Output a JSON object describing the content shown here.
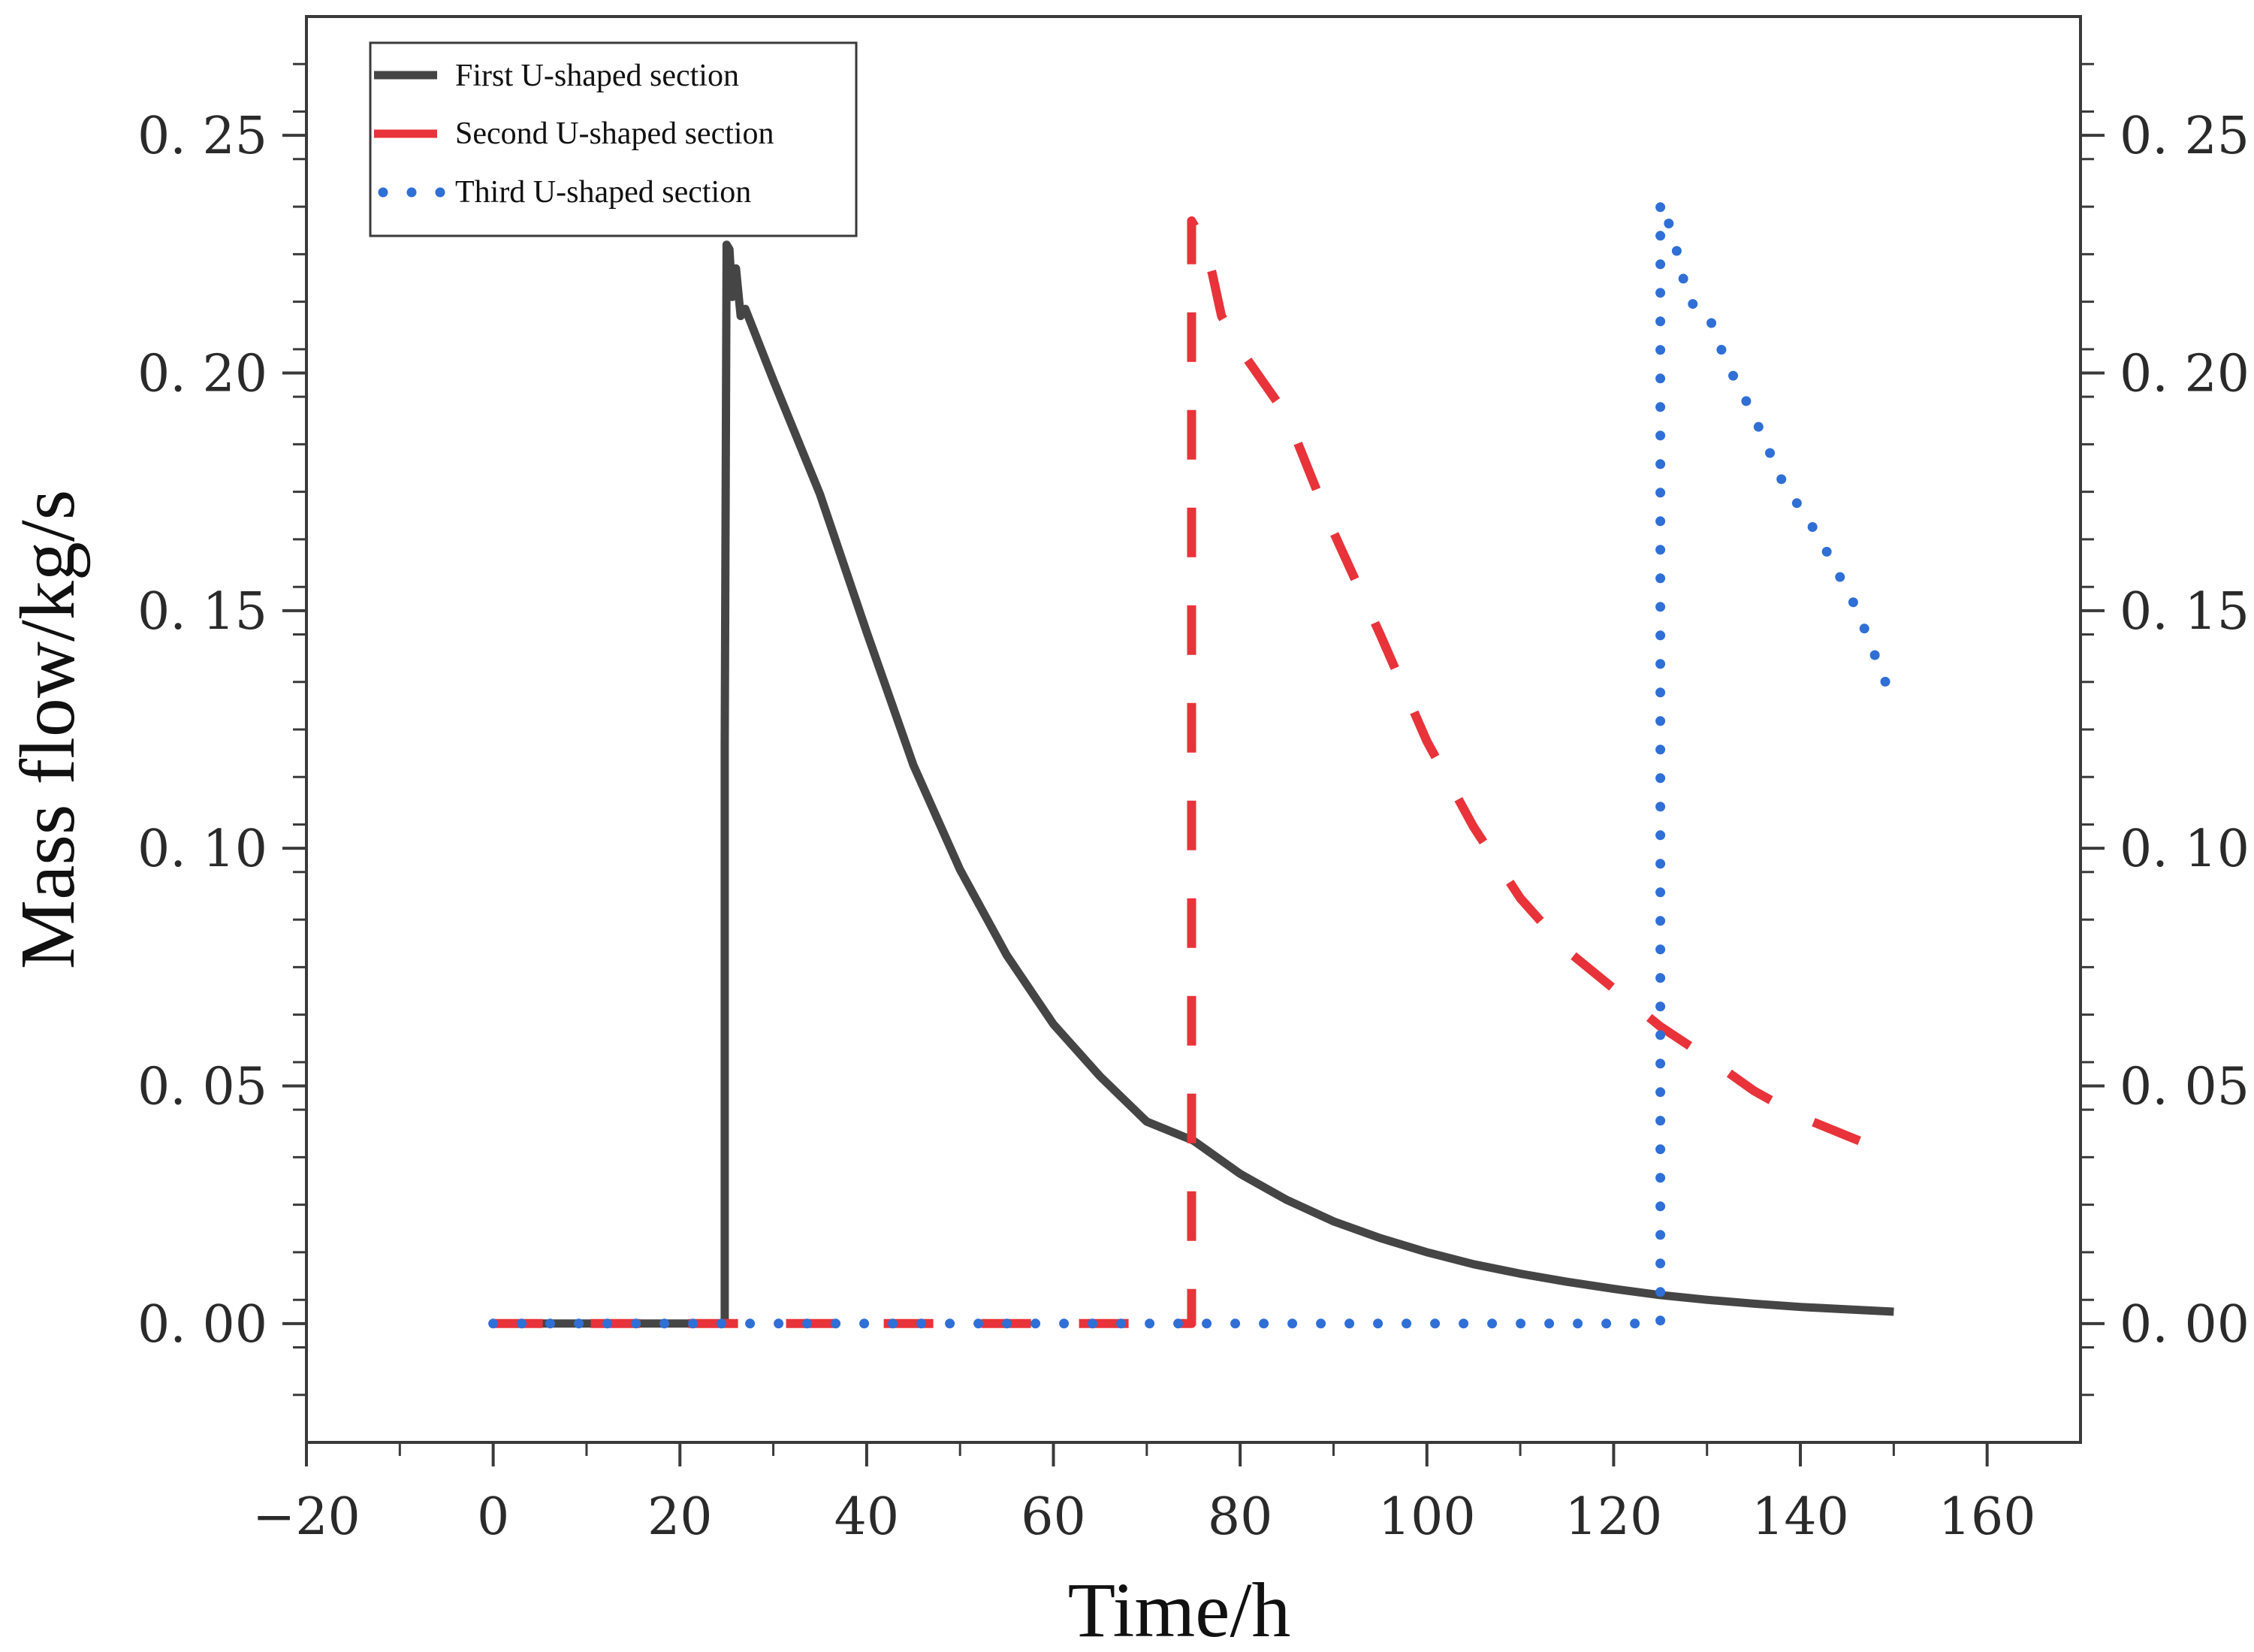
{
  "chart_data": {
    "type": "line",
    "title": "",
    "xlabel": "Time/h",
    "ylabel": "Mass flow/kg/s",
    "xlim": [
      -20,
      170
    ],
    "ylim": [
      -0.025,
      0.275
    ],
    "xticks": [
      -20,
      0,
      20,
      40,
      60,
      80,
      100,
      120,
      140,
      160
    ],
    "xtick_labels": [
      "−20",
      "0",
      "20",
      "40",
      "60",
      "80",
      "100",
      "120",
      "140",
      "160"
    ],
    "yticks": [
      0.0,
      0.05,
      0.1,
      0.15,
      0.2,
      0.25
    ],
    "ytick_labels": [
      "0. 00",
      "0. 05",
      "0. 10",
      "0. 15",
      "0. 20",
      "0. 25"
    ],
    "right_axis_mirrored": true,
    "grid": false,
    "legend_position": "top-left",
    "series": [
      {
        "name": "First U-shaped section",
        "color": "#454545",
        "style": "solid",
        "points": [
          [
            0,
            0
          ],
          [
            24.8,
            0
          ],
          [
            24.8,
            0.122
          ],
          [
            25.0,
            0.227
          ],
          [
            25.3,
            0.226
          ],
          [
            25.6,
            0.216
          ],
          [
            26.0,
            0.222
          ],
          [
            26.5,
            0.212
          ],
          [
            27,
            0.2135
          ],
          [
            30,
            0.1985
          ],
          [
            35,
            0.1745
          ],
          [
            40,
            0.1455
          ],
          [
            45,
            0.1175
          ],
          [
            50,
            0.0955
          ],
          [
            55,
            0.0775
          ],
          [
            60,
            0.063
          ],
          [
            65,
            0.052
          ],
          [
            70,
            0.0425
          ],
          [
            75,
            0.0385
          ],
          [
            80,
            0.0315
          ],
          [
            85,
            0.026
          ],
          [
            90,
            0.0215
          ],
          [
            95,
            0.018
          ],
          [
            100,
            0.015
          ],
          [
            105,
            0.0125
          ],
          [
            110,
            0.0105
          ],
          [
            115,
            0.0088
          ],
          [
            120,
            0.0073
          ],
          [
            125,
            0.006
          ],
          [
            130,
            0.005
          ],
          [
            135,
            0.0042
          ],
          [
            140,
            0.0035
          ],
          [
            145,
            0.003
          ],
          [
            150,
            0.0025
          ]
        ]
      },
      {
        "name": "Second U-shaped section",
        "color": "#e8333a",
        "style": "dashed",
        "points": [
          [
            0,
            0
          ],
          [
            74.8,
            0
          ],
          [
            74.8,
            0.232
          ],
          [
            76,
            0.228
          ],
          [
            77,
            0.221
          ],
          [
            78,
            0.212
          ],
          [
            80,
            0.205
          ],
          [
            85,
            0.191
          ],
          [
            90,
            0.1665
          ],
          [
            95,
            0.145
          ],
          [
            100,
            0.1225
          ],
          [
            105,
            0.1045
          ],
          [
            110,
            0.0895
          ],
          [
            115,
            0.0785
          ],
          [
            120,
            0.0705
          ],
          [
            125,
            0.0625
          ],
          [
            130,
            0.056
          ],
          [
            135,
            0.049
          ],
          [
            140,
            0.0435
          ],
          [
            145,
            0.0395
          ],
          [
            150,
            0.0355
          ]
        ]
      },
      {
        "name": "Third U-shaped section",
        "color": "#2f6fd6",
        "style": "dotted",
        "points": [
          [
            0,
            0
          ],
          [
            125,
            0
          ],
          [
            125,
            0.236
          ],
          [
            126,
            0.231
          ],
          [
            127,
            0.224
          ],
          [
            128,
            0.215
          ],
          [
            129,
            0.214
          ],
          [
            130,
            0.213
          ],
          [
            132,
            0.2025
          ],
          [
            135,
            0.191
          ],
          [
            138,
            0.1775
          ],
          [
            142,
            0.1655
          ],
          [
            146,
            0.1505
          ],
          [
            150,
            0.1305
          ]
        ]
      }
    ]
  }
}
